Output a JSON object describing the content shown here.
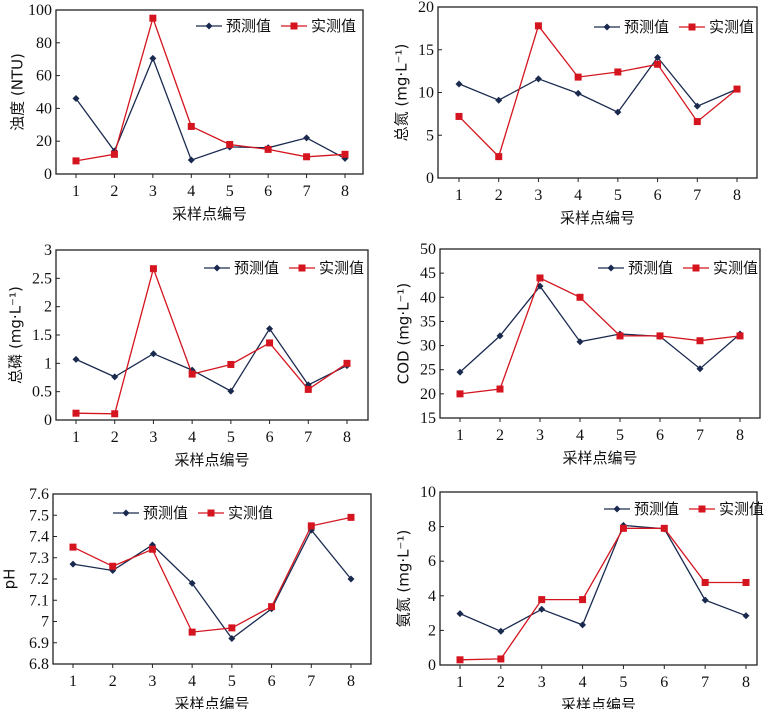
{
  "colors": {
    "predicted": "#1a2a4f",
    "measured": "#d4151f",
    "axis": "#222222"
  },
  "legend": {
    "predicted_label": "预测值",
    "measured_label": "实测值"
  },
  "chart_data": [
    {
      "type": "line",
      "title": "",
      "xlabel": "采样点编号",
      "ylabel": "浊度 (NTU)",
      "x": [
        1,
        2,
        3,
        4,
        5,
        6,
        7,
        8
      ],
      "xticks": [
        "1",
        "2",
        "3",
        "4",
        "5",
        "6",
        "7",
        "8"
      ],
      "ylim": [
        0,
        100
      ],
      "yticks": [
        0,
        20,
        40,
        60,
        80,
        100
      ],
      "ytick_labels": [
        "0",
        "20",
        "40",
        "60",
        "80",
        "100"
      ],
      "legend_position": "top-right",
      "grid": false,
      "series": [
        {
          "name": "预测值",
          "marker": "diamond",
          "values": [
            46,
            14,
            70.5,
            8.5,
            16.5,
            16,
            22,
            9.5
          ]
        },
        {
          "name": "实测值",
          "marker": "square",
          "values": [
            8,
            12,
            95,
            29,
            18,
            15,
            10.5,
            12
          ]
        }
      ]
    },
    {
      "type": "line",
      "title": "",
      "xlabel": "采样点编号",
      "ylabel": "总氮 (mg·L⁻¹)",
      "x": [
        1,
        2,
        3,
        4,
        5,
        6,
        7,
        8
      ],
      "xticks": [
        "1",
        "2",
        "3",
        "4",
        "5",
        "6",
        "7",
        "8"
      ],
      "ylim": [
        0,
        20
      ],
      "yticks": [
        0,
        5,
        10,
        15,
        20
      ],
      "ytick_labels": [
        "0",
        "5",
        "10",
        "15",
        "20"
      ],
      "legend_position": "top-right",
      "grid": false,
      "series": [
        {
          "name": "预测值",
          "marker": "diamond",
          "values": [
            11.0,
            9.1,
            11.6,
            9.9,
            7.7,
            14.1,
            8.4,
            10.4
          ]
        },
        {
          "name": "实测值",
          "marker": "square",
          "values": [
            7.2,
            2.5,
            17.8,
            11.8,
            12.4,
            13.3,
            6.6,
            10.4
          ]
        }
      ]
    },
    {
      "type": "line",
      "title": "",
      "xlabel": "采样点编号",
      "ylabel": "总磷 (mg·L⁻¹)",
      "x": [
        1,
        2,
        3,
        4,
        5,
        6,
        7,
        8
      ],
      "xticks": [
        "1",
        "2",
        "3",
        "4",
        "5",
        "6",
        "7",
        "8"
      ],
      "ylim": [
        0,
        3
      ],
      "yticks": [
        0,
        0.5,
        1,
        1.5,
        2,
        2.5,
        3
      ],
      "ytick_labels": [
        "0",
        "0.5",
        "1",
        "1.5",
        "2",
        "2.5",
        "3"
      ],
      "legend_position": "top-right",
      "grid": false,
      "series": [
        {
          "name": "预测值",
          "marker": "diamond",
          "values": [
            1.07,
            0.76,
            1.17,
            0.88,
            0.51,
            1.61,
            0.62,
            0.96
          ]
        },
        {
          "name": "实测值",
          "marker": "square",
          "values": [
            0.12,
            0.11,
            2.67,
            0.81,
            0.98,
            1.36,
            0.54,
            1.0
          ]
        }
      ]
    },
    {
      "type": "line",
      "title": "",
      "xlabel": "采样点编号",
      "ylabel": "COD (mg·L⁻¹)",
      "x": [
        1,
        2,
        3,
        4,
        5,
        6,
        7,
        8
      ],
      "xticks": [
        "1",
        "2",
        "3",
        "4",
        "5",
        "6",
        "7",
        "8"
      ],
      "ylim": [
        15,
        50
      ],
      "yticks": [
        15,
        20,
        25,
        30,
        35,
        40,
        45,
        50
      ],
      "ytick_labels": [
        "15",
        "20",
        "25",
        "30",
        "35",
        "40",
        "45",
        "50"
      ],
      "legend_position": "top-right",
      "grid": false,
      "series": [
        {
          "name": "预测值",
          "marker": "diamond",
          "values": [
            24.5,
            32,
            42.3,
            30.8,
            32.4,
            31.9,
            25.2,
            32.4
          ]
        },
        {
          "name": "实测值",
          "marker": "square",
          "values": [
            20,
            21,
            44,
            40,
            32,
            32,
            31,
            32
          ]
        }
      ]
    },
    {
      "type": "line",
      "title": "",
      "xlabel": "采样点编号",
      "ylabel": "pH",
      "x": [
        1,
        2,
        3,
        4,
        5,
        6,
        7,
        8
      ],
      "xticks": [
        "1",
        "2",
        "3",
        "4",
        "5",
        "6",
        "7",
        "8"
      ],
      "ylim": [
        6.8,
        7.6
      ],
      "yticks": [
        6.8,
        6.9,
        7.0,
        7.1,
        7.2,
        7.3,
        7.4,
        7.5,
        7.6
      ],
      "ytick_labels": [
        "6.8",
        "6.9",
        "7",
        "7.1",
        "7.2",
        "7.3",
        "7.4",
        "7.5",
        "7.6"
      ],
      "legend_position": "top-center",
      "grid": false,
      "series": [
        {
          "name": "预测值",
          "marker": "diamond",
          "values": [
            7.27,
            7.24,
            7.36,
            7.18,
            6.92,
            7.06,
            7.43,
            7.2
          ]
        },
        {
          "name": "实测值",
          "marker": "square",
          "values": [
            7.35,
            7.26,
            7.34,
            6.95,
            6.97,
            7.07,
            7.45,
            7.49
          ]
        }
      ]
    },
    {
      "type": "line",
      "title": "",
      "xlabel": "采样点编号",
      "ylabel": "氨氮 (mg·L⁻¹)",
      "x": [
        1,
        2,
        3,
        4,
        5,
        6,
        7,
        8
      ],
      "xticks": [
        "1",
        "2",
        "3",
        "4",
        "5",
        "6",
        "7",
        "8"
      ],
      "ylim": [
        0,
        10
      ],
      "yticks": [
        0,
        2,
        4,
        6,
        8,
        10
      ],
      "ytick_labels": [
        "0",
        "2",
        "4",
        "6",
        "8",
        "10"
      ],
      "legend_position": "top-right",
      "grid": false,
      "series": [
        {
          "name": "预测值",
          "marker": "diamond",
          "values": [
            2.97,
            1.95,
            3.22,
            2.32,
            8.07,
            7.87,
            3.75,
            2.85
          ]
        },
        {
          "name": "实测值",
          "marker": "square",
          "values": [
            0.3,
            0.35,
            3.78,
            3.78,
            7.9,
            7.9,
            4.77,
            4.77
          ]
        }
      ]
    }
  ]
}
